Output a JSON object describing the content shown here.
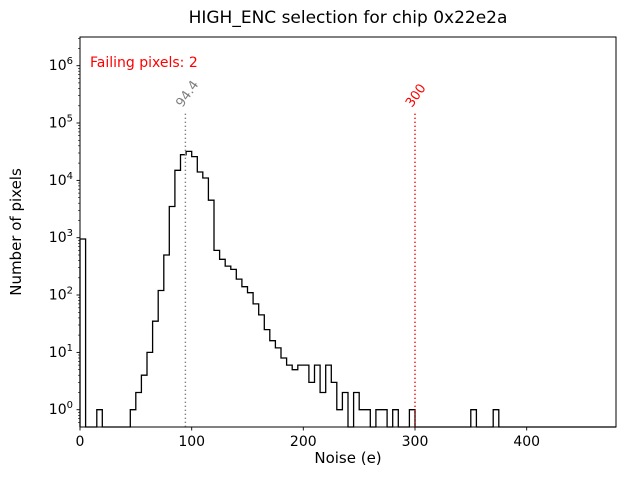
{
  "figure": {
    "title": "HIGH_ENC selection for chip 0x22e2a"
  },
  "chart_data": {
    "type": "bar",
    "subtype": "histogram-step",
    "title": "HIGH_ENC selection for chip 0x22e2a",
    "xlabel": "Noise (e)",
    "ylabel": "Number of pixels",
    "yscale": "log",
    "xlim": [
      0,
      480
    ],
    "ylim": [
      0.5,
      3162278
    ],
    "bin_start": 0,
    "bin_width": 5,
    "counts": [
      950,
      0,
      0,
      1,
      0,
      0,
      0,
      0,
      0,
      1,
      2,
      4,
      10,
      35,
      120,
      500,
      3500,
      15000,
      28000,
      32000,
      26000,
      14000,
      11000,
      4500,
      600,
      420,
      320,
      280,
      190,
      140,
      110,
      70,
      45,
      25,
      16,
      12,
      8,
      6,
      5,
      6,
      6,
      3,
      6,
      2,
      6,
      3,
      1,
      2,
      0,
      2,
      1,
      1,
      0,
      1,
      1,
      0,
      1,
      0,
      0,
      1,
      0,
      0,
      0,
      0,
      0,
      0,
      0,
      0,
      0,
      0,
      1,
      0,
      0,
      0,
      1,
      0,
      0,
      0,
      0,
      0,
      0,
      0,
      0,
      0,
      0,
      0,
      0,
      0,
      0,
      0,
      0,
      0,
      0,
      0,
      0,
      0
    ],
    "x_ticks": [
      0,
      100,
      200,
      300,
      400
    ],
    "y_tick_exponents": [
      0,
      1,
      2,
      3,
      4,
      5,
      6
    ],
    "series_color": "#000000",
    "grid": false,
    "legend": null,
    "vlines": [
      {
        "x": 94.4,
        "label": "94.4",
        "color": "#808080",
        "style": "dotted"
      },
      {
        "x": 300,
        "label": "300",
        "color": "#ff0000",
        "style": "dotted"
      }
    ],
    "annotations": [
      {
        "text": "Failing pixels: 2",
        "color": "#ff0000",
        "position": "top-left"
      }
    ]
  }
}
